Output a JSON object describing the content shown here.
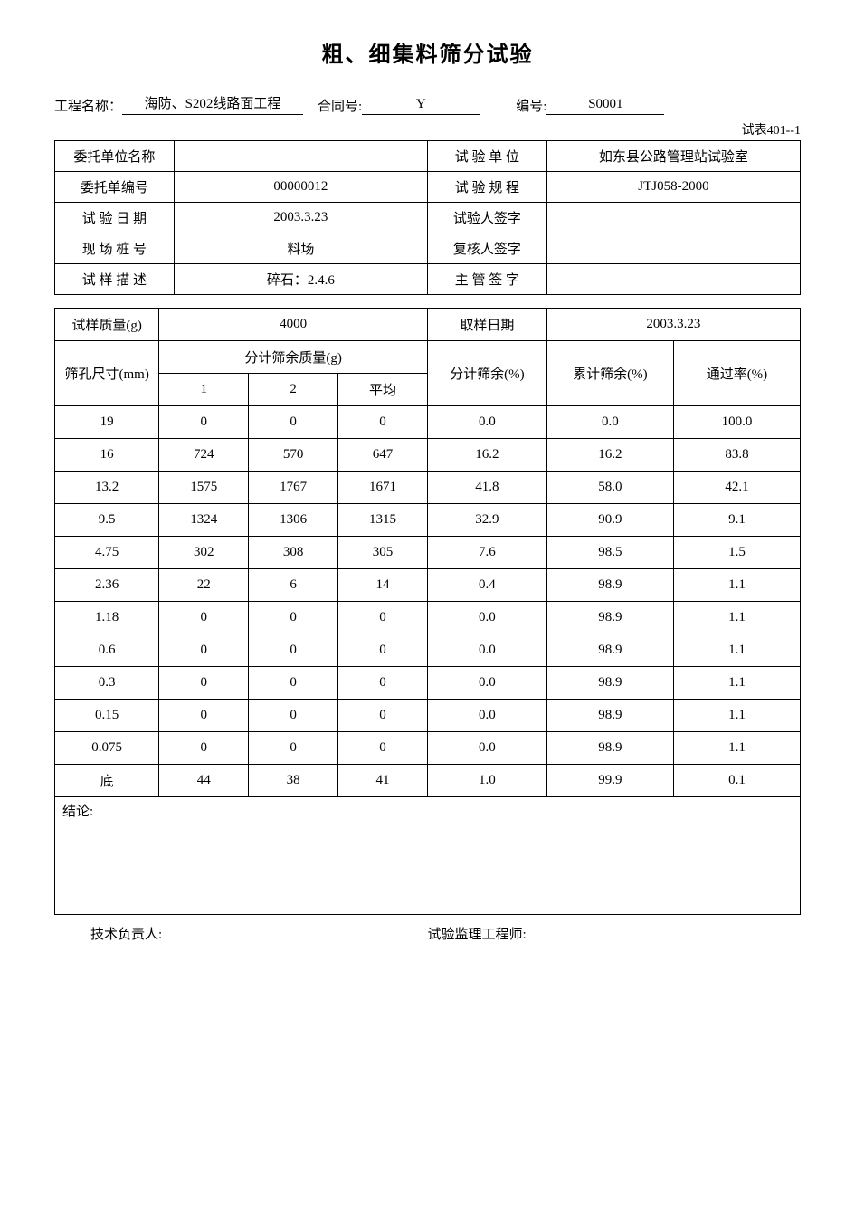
{
  "title": "粗、细集料筛分试验",
  "header": {
    "project_label": "工程名称：",
    "project_value": "海防、S202线路面工程",
    "contract_label": "合同号:",
    "contract_value": "Y",
    "serial_label": "编号:",
    "serial_value": "S0001"
  },
  "form_code": "试表401--1",
  "info_rows": [
    {
      "label1": "委托单位名称",
      "value1": "",
      "label2": "试 验 单 位",
      "value2": "如东县公路管理站试验室"
    },
    {
      "label1": "委托单编号",
      "value1": "00000012",
      "label2": "试 验 规 程",
      "value2": "JTJ058-2000"
    },
    {
      "label1": "试 验 日 期",
      "value1": "2003.3.23",
      "label2": "试验人签字",
      "value2": ""
    },
    {
      "label1": "现 场 桩 号",
      "value1": "料场",
      "label2": "复核人签字",
      "value2": ""
    },
    {
      "label1": "试 样 描 述",
      "value1": "碎石：2.4.6",
      "label2": "主 管 签 字",
      "value2": ""
    }
  ],
  "sample_mass_label": "试样质量(g)",
  "sample_mass_value": "4000",
  "sampling_date_label": "取样日期",
  "sampling_date_value": "2003.3.23",
  "sieve_header": {
    "sieve_size": "筛孔尺寸(mm)",
    "retained_mass": "分计筛余质量(g)",
    "col1": "1",
    "col2": "2",
    "avg": "平均",
    "retained_pct": "分计筛余(%)",
    "cumulative_pct": "累计筛余(%)",
    "passing_pct": "通过率(%)"
  },
  "sieve_rows": [
    {
      "size": "19",
      "m1": "0",
      "m2": "0",
      "avg": "0",
      "rp": "0.0",
      "cp": "0.0",
      "pp": "100.0"
    },
    {
      "size": "16",
      "m1": "724",
      "m2": "570",
      "avg": "647",
      "rp": "16.2",
      "cp": "16.2",
      "pp": "83.8"
    },
    {
      "size": "13.2",
      "m1": "1575",
      "m2": "1767",
      "avg": "1671",
      "rp": "41.8",
      "cp": "58.0",
      "pp": "42.1"
    },
    {
      "size": "9.5",
      "m1": "1324",
      "m2": "1306",
      "avg": "1315",
      "rp": "32.9",
      "cp": "90.9",
      "pp": "9.1"
    },
    {
      "size": "4.75",
      "m1": "302",
      "m2": "308",
      "avg": "305",
      "rp": "7.6",
      "cp": "98.5",
      "pp": "1.5"
    },
    {
      "size": "2.36",
      "m1": "22",
      "m2": "6",
      "avg": "14",
      "rp": "0.4",
      "cp": "98.9",
      "pp": "1.1"
    },
    {
      "size": "1.18",
      "m1": "0",
      "m2": "0",
      "avg": "0",
      "rp": "0.0",
      "cp": "98.9",
      "pp": "1.1"
    },
    {
      "size": "0.6",
      "m1": "0",
      "m2": "0",
      "avg": "0",
      "rp": "0.0",
      "cp": "98.9",
      "pp": "1.1"
    },
    {
      "size": "0.3",
      "m1": "0",
      "m2": "0",
      "avg": "0",
      "rp": "0.0",
      "cp": "98.9",
      "pp": "1.1"
    },
    {
      "size": "0.15",
      "m1": "0",
      "m2": "0",
      "avg": "0",
      "rp": "0.0",
      "cp": "98.9",
      "pp": "1.1"
    },
    {
      "size": "0.075",
      "m1": "0",
      "m2": "0",
      "avg": "0",
      "rp": "0.0",
      "cp": "98.9",
      "pp": "1.1"
    },
    {
      "size": "底",
      "m1": "44",
      "m2": "38",
      "avg": "41",
      "rp": "1.0",
      "cp": "99.9",
      "pp": "0.1"
    }
  ],
  "conclusion_label": "结论:",
  "footer": {
    "tech_lead": "技术负责人:",
    "supervisor": "试验监理工程师:"
  }
}
